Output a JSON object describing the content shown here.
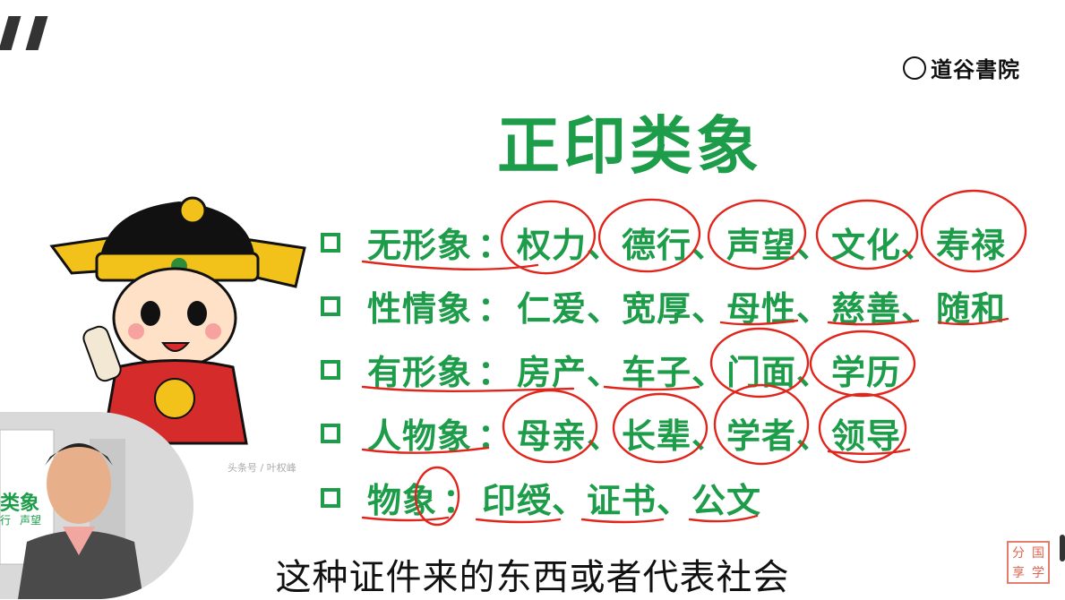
{
  "brand": {
    "name": "道谷書院"
  },
  "slide": {
    "title": "正印类象",
    "rows": [
      {
        "label": "无形象",
        "colon": "：",
        "items": "权力、德行、声望、文化、寿禄"
      },
      {
        "label": "性情象",
        "colon": "：",
        "items": "仁爱、宽厚、母性、慈善、随和"
      },
      {
        "label": "有形象",
        "colon": "：",
        "items": "房产、车子、门面、学历"
      },
      {
        "label": "人物象",
        "colon": "：",
        "items": "母亲、长辈、学者、领导"
      },
      {
        "label": "物象",
        "colon": "：",
        "items": "印绶、证书、公文"
      }
    ]
  },
  "watermark": "头条号 / 叶权峰",
  "speaker_board": {
    "text1": "类象",
    "text2": "行",
    "text3": "声望"
  },
  "subtitle": "这种证件来的东西或者代表社会",
  "stamp": {
    "chars": [
      "分",
      "国",
      "享",
      "学"
    ]
  },
  "colors": {
    "accent": "#1d9c4a",
    "ink": "#e0261c"
  }
}
